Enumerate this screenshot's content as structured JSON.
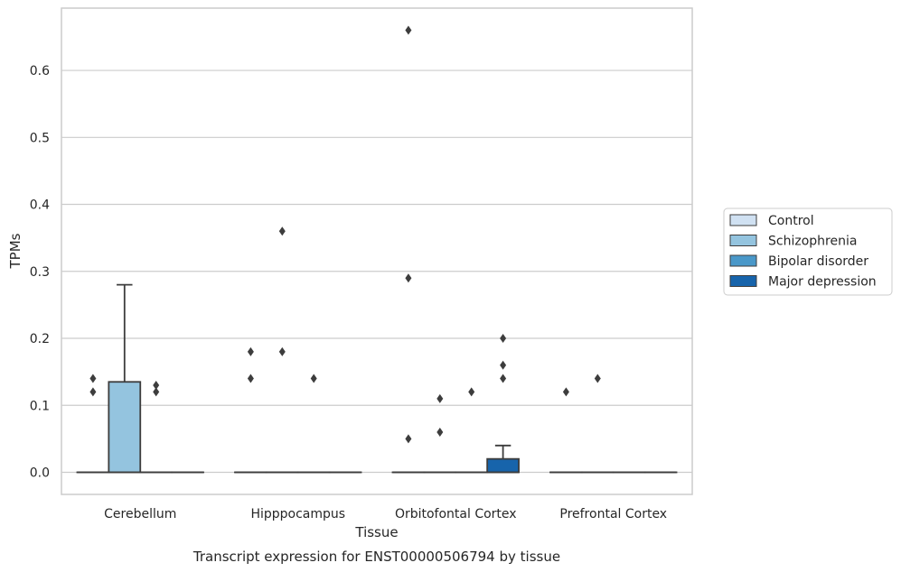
{
  "caption": "Transcript expression for ENST00000506794 by tissue",
  "colors": {
    "Control": "#d0e1f2",
    "Schizophrenia": "#94c4df",
    "Bipolar disorder": "#4a98c9",
    "Major depression": "#1764ab",
    "grid": "#cccccc",
    "box_line": "#3d3d3d"
  },
  "chart_data": {
    "type": "box",
    "xlabel": "Tissue",
    "ylabel": "TPMs",
    "ylim": [
      -0.033,
      0.693
    ],
    "yticks": [
      0.0,
      0.1,
      0.2,
      0.3,
      0.4,
      0.5,
      0.6
    ],
    "ytick_labels": [
      "0.0",
      "0.1",
      "0.2",
      "0.3",
      "0.4",
      "0.5",
      "0.6"
    ],
    "grid": "horizontal",
    "legend_position": "right",
    "categories": [
      "Cerebellum",
      "Hipppocampus",
      "Orbitofontal Cortex",
      "Prefrontal Cortex"
    ],
    "series": [
      {
        "name": "Control",
        "boxes": [
          {
            "q1": 0,
            "median": 0,
            "q3": 0,
            "whisker_low": 0,
            "whisker_high": 0,
            "outliers": [
              0.12,
              0.14
            ]
          },
          {
            "q1": 0,
            "median": 0,
            "q3": 0,
            "whisker_low": 0,
            "whisker_high": 0,
            "outliers": [
              0.14,
              0.18
            ]
          },
          {
            "q1": 0,
            "median": 0,
            "q3": 0,
            "whisker_low": 0,
            "whisker_high": 0,
            "outliers": [
              0.05,
              0.29,
              0.66
            ]
          },
          {
            "q1": 0,
            "median": 0,
            "q3": 0,
            "whisker_low": 0,
            "whisker_high": 0,
            "outliers": [
              0.12
            ]
          }
        ]
      },
      {
        "name": "Schizophrenia",
        "boxes": [
          {
            "q1": 0,
            "median": 0,
            "q3": 0.135,
            "whisker_low": 0,
            "whisker_high": 0.28,
            "outliers": []
          },
          {
            "q1": 0,
            "median": 0,
            "q3": 0,
            "whisker_low": 0,
            "whisker_high": 0,
            "outliers": [
              0.18,
              0.36
            ]
          },
          {
            "q1": 0,
            "median": 0,
            "q3": 0,
            "whisker_low": 0,
            "whisker_high": 0,
            "outliers": [
              0.06,
              0.11
            ]
          },
          {
            "q1": 0,
            "median": 0,
            "q3": 0,
            "whisker_low": 0,
            "whisker_high": 0,
            "outliers": [
              0.14
            ]
          }
        ]
      },
      {
        "name": "Bipolar disorder",
        "boxes": [
          {
            "q1": 0,
            "median": 0,
            "q3": 0,
            "whisker_low": 0,
            "whisker_high": 0,
            "outliers": [
              0.12,
              0.13
            ]
          },
          {
            "q1": 0,
            "median": 0,
            "q3": 0,
            "whisker_low": 0,
            "whisker_high": 0,
            "outliers": [
              0.14
            ]
          },
          {
            "q1": 0,
            "median": 0,
            "q3": 0,
            "whisker_low": 0,
            "whisker_high": 0,
            "outliers": [
              0.12
            ]
          },
          {
            "q1": 0,
            "median": 0,
            "q3": 0,
            "whisker_low": 0,
            "whisker_high": 0,
            "outliers": []
          }
        ]
      },
      {
        "name": "Major depression",
        "boxes": [
          {
            "q1": 0,
            "median": 0,
            "q3": 0,
            "whisker_low": 0,
            "whisker_high": 0,
            "outliers": []
          },
          {
            "q1": 0,
            "median": 0,
            "q3": 0,
            "whisker_low": 0,
            "whisker_high": 0,
            "outliers": []
          },
          {
            "q1": 0,
            "median": 0,
            "q3": 0.02,
            "whisker_low": 0,
            "whisker_high": 0.04,
            "outliers": [
              0.14,
              0.16,
              0.2
            ]
          },
          {
            "q1": 0,
            "median": 0,
            "q3": 0,
            "whisker_low": 0,
            "whisker_high": 0,
            "outliers": []
          }
        ]
      }
    ]
  }
}
